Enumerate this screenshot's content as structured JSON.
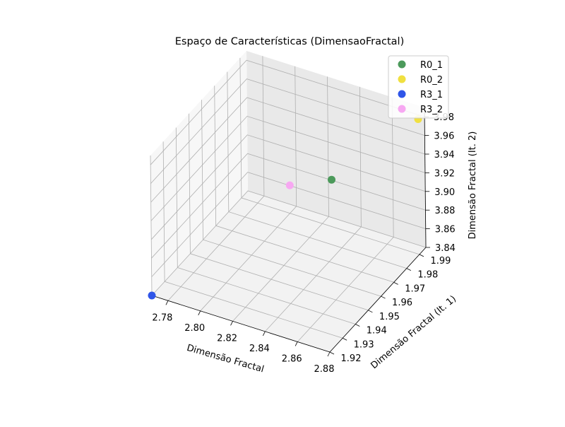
{
  "chart_data": {
    "type": "scatter",
    "projection": "3d",
    "title": "Espaço de Características (DimensaoFractal)",
    "xlabel": "Dimensão Fractal",
    "ylabel": "Dimensão Fractal (It. 1)",
    "zlabel": "Dimensão Fractal (It. 2)",
    "xlim": [
      2.77,
      2.88
    ],
    "ylim": [
      1.92,
      1.995
    ],
    "zlim": [
      3.84,
      3.99
    ],
    "x_ticks": [
      "2.78",
      "2.80",
      "2.82",
      "2.84",
      "2.86",
      "2.88"
    ],
    "y_ticks": [
      "1.92",
      "1.93",
      "1.94",
      "1.95",
      "1.96",
      "1.97",
      "1.98",
      "1.99"
    ],
    "z_ticks": [
      "3.84",
      "3.86",
      "3.88",
      "3.90",
      "3.92",
      "3.94",
      "3.96",
      "3.98"
    ],
    "grid": true,
    "legend_position": "top-right",
    "series": [
      {
        "name": "R0_1",
        "color": "#4c9a5b",
        "x": 2.83,
        "y": 1.985,
        "z": 3.9
      },
      {
        "name": "R0_2",
        "color": "#f0e040",
        "x": 2.88,
        "y": 1.99,
        "z": 3.985
      },
      {
        "name": "R3_1",
        "color": "#2f55e8",
        "x": 2.77,
        "y": 1.92,
        "z": 3.84
      },
      {
        "name": "R3_2",
        "color": "#f7a8f2",
        "x": 2.8,
        "y": 1.99,
        "z": 3.87
      }
    ]
  }
}
